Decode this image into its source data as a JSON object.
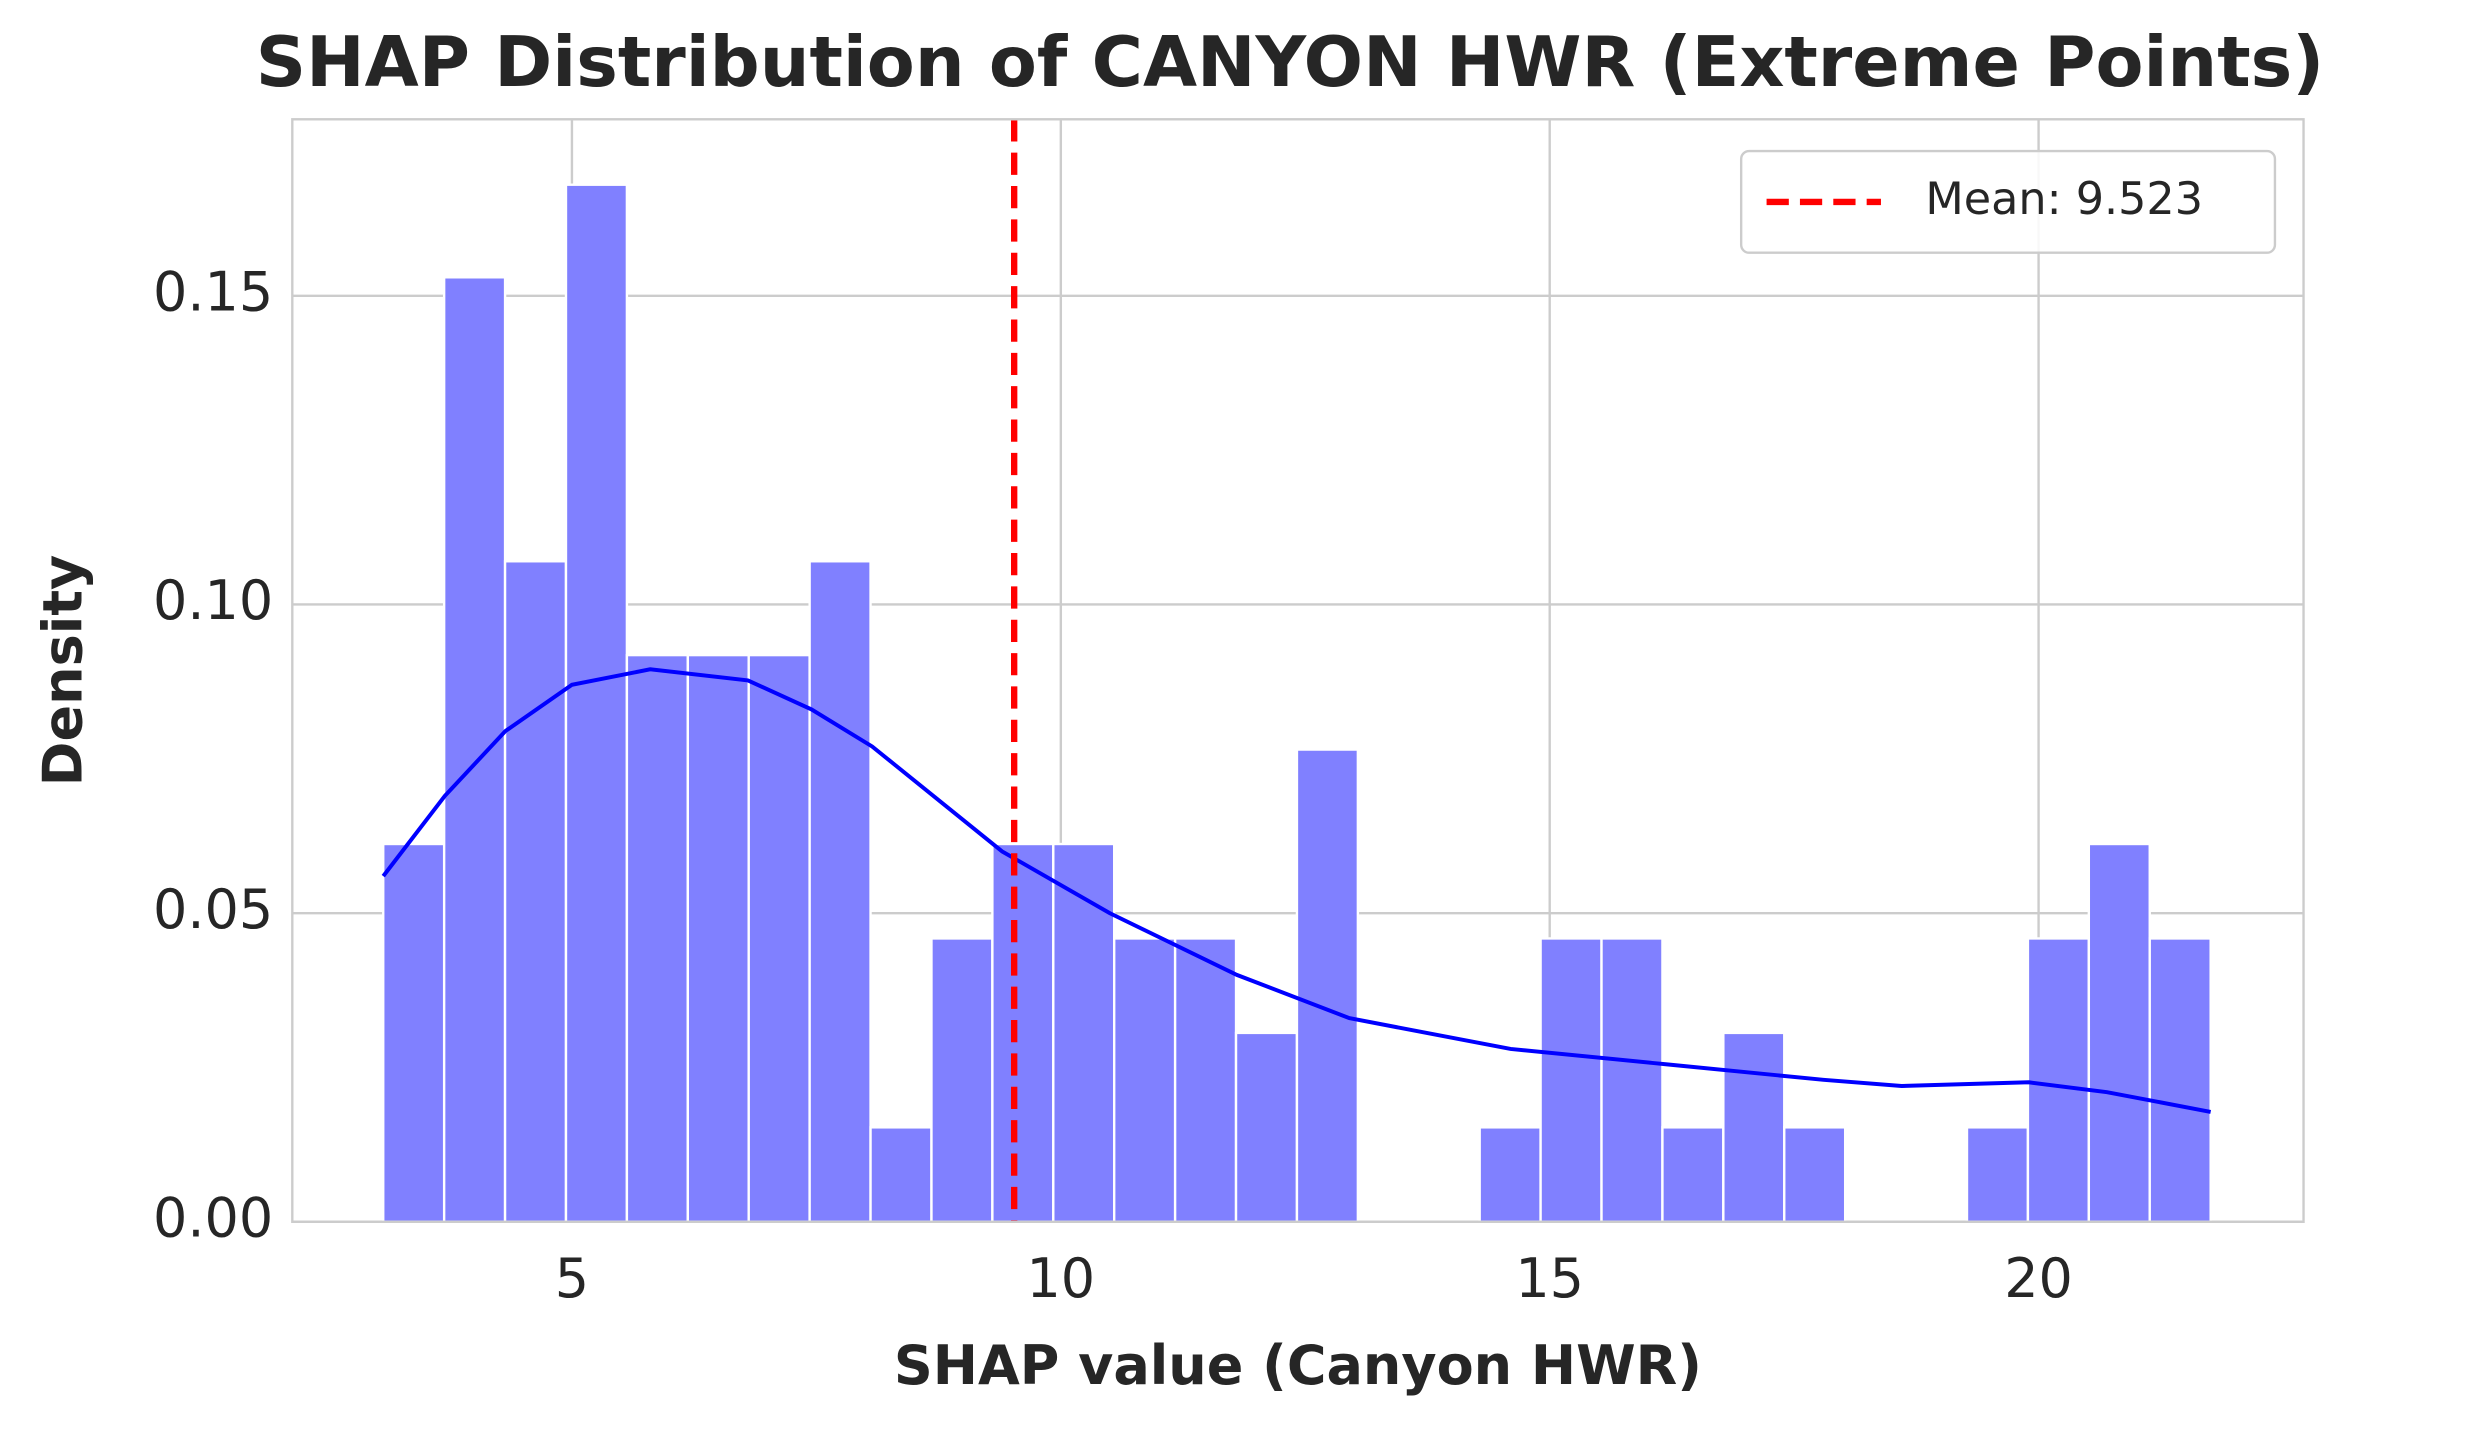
{
  "chart_data": {
    "type": "histogram",
    "title": "SHAP Distribution of CANYON HWR (Extreme Points)",
    "xlabel": "SHAP value (Canyon HWR)",
    "ylabel": "Density",
    "bins": [
      3.07,
      3.693,
      4.316,
      4.939,
      5.562,
      6.185,
      6.808,
      7.431,
      8.054,
      8.677,
      9.3,
      9.923,
      10.546,
      11.169,
      11.792,
      12.415,
      13.038,
      13.661,
      14.284,
      14.907,
      15.53,
      16.153,
      16.776,
      17.399,
      18.022,
      18.645,
      19.268,
      19.891,
      20.514,
      21.137,
      21.76
    ],
    "values": [
      0.0612,
      0.153,
      0.107,
      0.168,
      0.0918,
      0.0918,
      0.0918,
      0.107,
      0.0153,
      0.0459,
      0.0612,
      0.0612,
      0.0459,
      0.0459,
      0.0306,
      0.0765,
      0,
      0,
      0.0153,
      0.0459,
      0.0459,
      0.0153,
      0.0306,
      0.0153,
      0,
      0,
      0.0153,
      0.0459,
      0.0612,
      0.0459
    ],
    "color": "#8080ff",
    "kde": {
      "color": "#0000ff",
      "x": [
        3.07,
        3.7,
        4.32,
        5.0,
        5.8,
        6.8,
        7.45,
        8.07,
        9.4,
        10.5,
        11.8,
        12.95,
        14.6,
        16.2,
        17.8,
        18.6,
        19.9,
        20.7,
        21.76
      ],
      "y": [
        0.056,
        0.069,
        0.0795,
        0.087,
        0.0895,
        0.0877,
        0.083,
        0.077,
        0.06,
        0.05,
        0.04,
        0.033,
        0.028,
        0.0255,
        0.023,
        0.022,
        0.0226,
        0.021,
        0.0178
      ]
    },
    "mean_line": {
      "value": 9.523,
      "label": "Mean: 9.523",
      "color": "#ff0000"
    },
    "xlim": [
      2.14,
      22.71
    ],
    "ylim": [
      0,
      0.1786
    ],
    "xticks": [
      5,
      10,
      15,
      20
    ],
    "yticks": [
      {
        "value": 0,
        "label": "0.00"
      },
      {
        "value": 0.05,
        "label": "0.05"
      },
      {
        "value": 0.1,
        "label": "0.10"
      },
      {
        "value": 0.15,
        "label": "0.15"
      }
    ],
    "grid": true,
    "legend": "upper right"
  }
}
